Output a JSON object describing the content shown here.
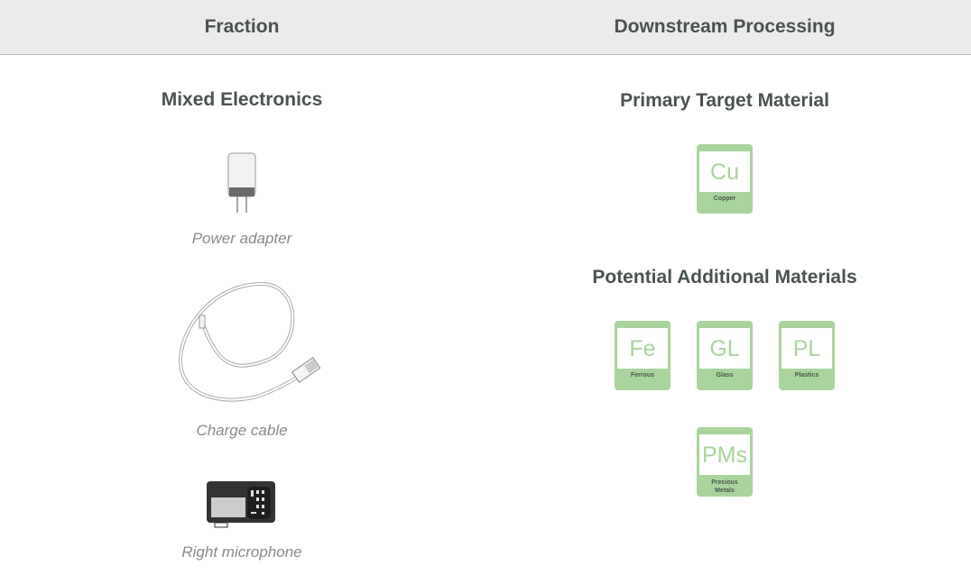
{
  "header": {
    "col1": "Fraction",
    "col2": "Downstream Processing"
  },
  "fraction": {
    "title": "Mixed Electronics",
    "items": [
      {
        "label": "Power adapter",
        "icon": "power-adapter-icon"
      },
      {
        "label": "Charge cable",
        "icon": "charge-cable-icon"
      },
      {
        "label": "Right microphone",
        "icon": "microphone-module-icon"
      }
    ]
  },
  "processing": {
    "primary_title": "Primary Target Material",
    "primary": {
      "symbol": "Cu",
      "name": "Copper"
    },
    "additional_title": "Potential Additional Materials",
    "additional": [
      {
        "symbol": "Fe",
        "name": "Ferrous"
      },
      {
        "symbol": "GL",
        "name": "Glass"
      },
      {
        "symbol": "PL",
        "name": "Plastics"
      },
      {
        "symbol": "PMs",
        "name": "Precious Metals"
      }
    ]
  },
  "colors": {
    "tile": "#a8d49c",
    "heading": "#4a5350",
    "caption": "#8a8a8a"
  }
}
